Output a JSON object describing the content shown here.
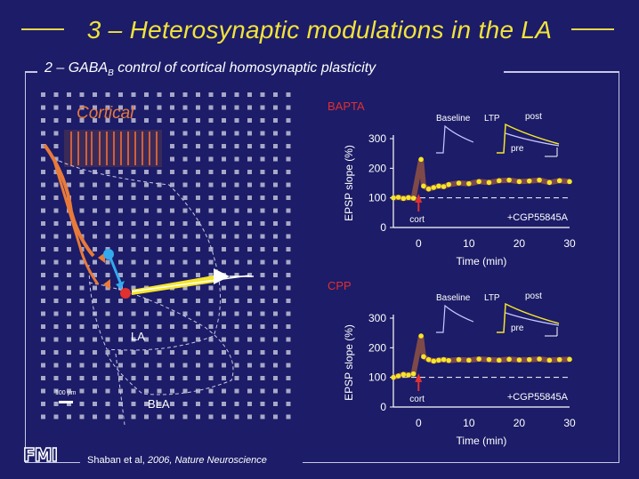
{
  "slide": {
    "title": "3 – Heterosynaptic modulations in the LA",
    "subtitle_main": "2 – GABA",
    "subtitle_sub": "B",
    "subtitle_rest": " control of cortical homosynaptic plasticity",
    "citation_authors": "Shaban et al, ",
    "citation_year": "2006, ",
    "citation_journal": "Nature Neuroscience",
    "logo": "FMI"
  },
  "diagram": {
    "cortical_label": "Cortical",
    "la_label": "LA",
    "bla_label": "BLA",
    "scale_label": "100 µm"
  },
  "colors": {
    "background": "#1c1c68",
    "title": "#f2e33a",
    "cortical": "#e87a3a",
    "yellow_trace": "#f5e52a",
    "red_label": "#e03030"
  },
  "chart_data": [
    {
      "type": "scatter",
      "panel_label": "BAPTA",
      "ylabel": "EPSP slope (%)",
      "xlabel": "Time (min)",
      "xlim": [
        -5,
        30
      ],
      "ylim": [
        0,
        300
      ],
      "xticks": [
        0,
        10,
        20,
        30
      ],
      "yticks": [
        0,
        100,
        200,
        300
      ],
      "baseline": 100,
      "annotations": {
        "stim": "cort",
        "drug": "+CGP55845A",
        "inset_baseline": "Baseline",
        "inset_ltp": "LTP",
        "inset_post": "post",
        "inset_pre": "pre"
      },
      "series": [
        {
          "x": [
            -5,
            -4,
            -3,
            -2,
            -1,
            0.5,
            1,
            2,
            3,
            4,
            5,
            6,
            8,
            10,
            12,
            14,
            16,
            18,
            20,
            22,
            24,
            26,
            28,
            30
          ],
          "y": [
            100,
            102,
            98,
            101,
            99,
            230,
            140,
            130,
            135,
            140,
            138,
            145,
            150,
            148,
            155,
            152,
            158,
            160,
            155,
            157,
            160,
            152,
            158,
            155
          ]
        }
      ]
    },
    {
      "type": "scatter",
      "panel_label": "CPP",
      "ylabel": "EPSP slope (%)",
      "xlabel": "Time (min)",
      "xlim": [
        -5,
        30
      ],
      "ylim": [
        0,
        300
      ],
      "xticks": [
        0,
        10,
        20,
        30
      ],
      "yticks": [
        0,
        100,
        200,
        300
      ],
      "baseline": 100,
      "annotations": {
        "stim": "cort",
        "drug": "+CGP55845A",
        "inset_baseline": "Baseline",
        "inset_ltp": "LTP",
        "inset_post": "post",
        "inset_pre": "pre"
      },
      "series": [
        {
          "x": [
            -5,
            -4,
            -3,
            -2,
            -1,
            0.5,
            1,
            2,
            3,
            4,
            5,
            6,
            8,
            10,
            12,
            14,
            16,
            18,
            20,
            22,
            24,
            26,
            28,
            30
          ],
          "y": [
            100,
            105,
            110,
            108,
            112,
            240,
            170,
            160,
            155,
            158,
            160,
            157,
            160,
            158,
            162,
            160,
            158,
            161,
            159,
            160,
            162,
            158,
            160,
            161
          ]
        }
      ]
    }
  ]
}
